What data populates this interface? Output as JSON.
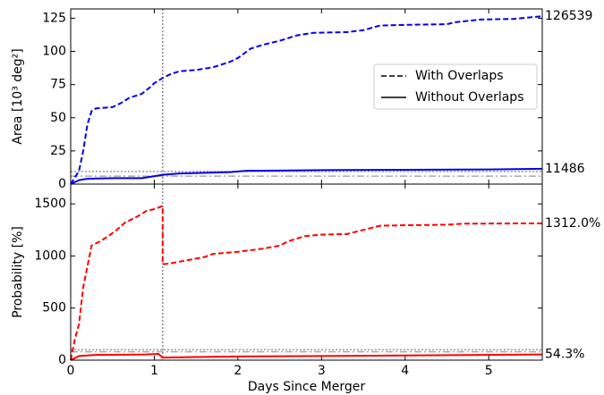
{
  "chart_data": [
    {
      "type": "line",
      "ylabel": "Area [10³ deg²]",
      "xlim": [
        0,
        5.64
      ],
      "xticks": [
        0,
        1,
        2,
        3,
        4,
        5
      ],
      "xticklabels": false,
      "ylim": [
        0,
        132
      ],
      "yticks": [
        0,
        25,
        50,
        75,
        100,
        125
      ],
      "vline": 1.1,
      "hlines": [
        {
          "value": 9.5,
          "color": "#999999",
          "dash": "dotted"
        },
        {
          "value": 6,
          "color": "#aaaaaa",
          "dash": "dashdot"
        }
      ],
      "series": [
        {
          "color": "#0000ee",
          "dash": "dashed",
          "x": [
            0,
            0.05,
            0.1,
            0.15,
            0.2,
            0.25,
            0.3,
            0.5,
            0.6,
            0.7,
            0.85,
            0.95,
            1.0,
            1.1,
            1.2,
            1.3,
            1.5,
            1.7,
            1.8,
            1.9,
            2.0,
            2.15,
            2.3,
            2.5,
            2.7,
            2.9,
            3.3,
            3.5,
            3.7,
            4.0,
            4.5,
            4.6,
            4.9,
            5.3,
            5.64
          ],
          "values": [
            0,
            5,
            10,
            25,
            45,
            55,
            57,
            58,
            61,
            65,
            68,
            73,
            76,
            80,
            83,
            85,
            86,
            88,
            90,
            92,
            95,
            102,
            105,
            108,
            112,
            114,
            114.5,
            116,
            119.5,
            120,
            120.5,
            122,
            124,
            124.5,
            126.5
          ]
        },
        {
          "color": "#0000ee",
          "dash": "solid",
          "x": [
            0,
            0.1,
            0.2,
            0.5,
            0.85,
            0.95,
            1.1,
            1.3,
            1.6,
            1.9,
            2.1,
            2.5,
            3,
            4,
            5,
            5.64
          ],
          "values": [
            0,
            3,
            4,
            4.5,
            4.5,
            5.5,
            7,
            8,
            8.5,
            9,
            10,
            10.2,
            10.5,
            10.8,
            11,
            11.5
          ]
        }
      ],
      "annotations": [
        {
          "label": "126539",
          "value": 126.539,
          "color": "#0000ee"
        },
        {
          "label": "11486",
          "value": 11.486,
          "color": "#0000ee"
        }
      ],
      "legend": {
        "loc": "center right",
        "entries": [
          {
            "label": "With Overlaps",
            "dash": "dashed"
          },
          {
            "label": "Without Overlaps",
            "dash": "solid"
          }
        ]
      }
    },
    {
      "type": "line",
      "ylabel": "Probability [%]",
      "xlabel": "Days Since Merger",
      "xlim": [
        0,
        5.64
      ],
      "xticks": [
        0,
        1,
        2,
        3,
        4,
        5
      ],
      "ylim": [
        0,
        1690
      ],
      "yticks": [
        0,
        500,
        1000,
        1500
      ],
      "vline": 1.1,
      "hlines": [
        {
          "value": 100,
          "color": "#999999",
          "dash": "dotted"
        },
        {
          "value": 80,
          "color": "#aaaaaa",
          "dash": "dashdot"
        }
      ],
      "series": [
        {
          "color": "#ff0000",
          "dash": "dashed",
          "x": [
            0,
            0.05,
            0.1,
            0.15,
            0.2,
            0.25,
            0.35,
            0.45,
            0.55,
            0.65,
            0.8,
            0.9,
            1.0,
            1.1,
            1.1,
            1.2,
            1.4,
            1.6,
            1.7,
            2.0,
            2.3,
            2.5,
            2.6,
            2.8,
            3.0,
            3.3,
            3.5,
            3.7,
            4.0,
            4.5,
            4.7,
            5.3,
            5.64
          ],
          "values": [
            0,
            200,
            350,
            700,
            900,
            1100,
            1140,
            1190,
            1250,
            1320,
            1380,
            1430,
            1450,
            1480,
            920,
            930,
            960,
            990,
            1020,
            1040,
            1070,
            1100,
            1140,
            1190,
            1205,
            1210,
            1250,
            1290,
            1295,
            1300,
            1310,
            1312,
            1312
          ]
        },
        {
          "color": "#ff0000",
          "dash": "solid",
          "x": [
            0,
            0.1,
            0.3,
            0.9,
            1.05,
            1.1,
            1.5,
            2,
            3,
            4,
            5.64
          ],
          "values": [
            0,
            40,
            50,
            55,
            60,
            25,
            30,
            35,
            40,
            45,
            54.3
          ]
        }
      ],
      "annotations": [
        {
          "label": "1312.0%",
          "value": 1312.0,
          "color": "#ff0000"
        },
        {
          "label": "54.3%",
          "value": 54.3,
          "color": "#ff0000"
        }
      ]
    }
  ]
}
